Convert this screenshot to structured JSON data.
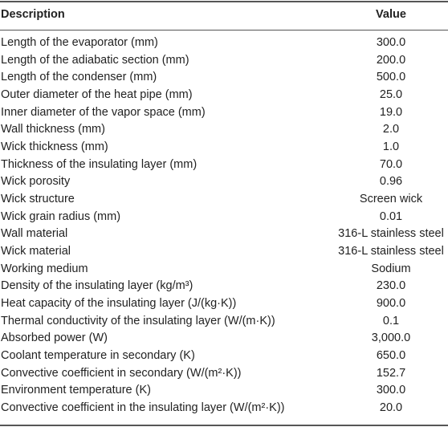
{
  "table": {
    "header": [
      "Description",
      "Value"
    ],
    "rows": [
      [
        "Length of the evaporator (mm)",
        "300.0"
      ],
      [
        "Length of the adiabatic section (mm)",
        "200.0"
      ],
      [
        "Length of the condenser (mm)",
        "500.0"
      ],
      [
        "Outer diameter of the heat pipe (mm)",
        "25.0"
      ],
      [
        "Inner diameter of the vapor space (mm)",
        "19.0"
      ],
      [
        "Wall thickness (mm)",
        "2.0"
      ],
      [
        "Wick thickness (mm)",
        "1.0"
      ],
      [
        "Thickness of the insulating layer (mm)",
        "70.0"
      ],
      [
        "Wick porosity",
        "0.96"
      ],
      [
        "Wick structure",
        "Screen wick"
      ],
      [
        "Wick grain radius (mm)",
        "0.01"
      ],
      [
        "Wall material",
        "316-L stainless steel"
      ],
      [
        "Wick material",
        "316-L stainless steel"
      ],
      [
        "Working medium",
        "Sodium"
      ],
      [
        "Density of the insulating layer (kg/m³)",
        "230.0"
      ],
      [
        "Heat capacity of the insulating layer (J/(kg·K))",
        "900.0"
      ],
      [
        "Thermal conductivity of the insulating layer (W/(m·K))",
        "0.1"
      ],
      [
        "Absorbed power (W)",
        "3,000.0"
      ],
      [
        "Coolant temperature in secondary (K)",
        "650.0"
      ],
      [
        "Convective coefficient in secondary (W/(m²·K))",
        "152.7"
      ],
      [
        "Environment temperature (K)",
        "300.0"
      ],
      [
        "Convective coefficient in the insulating layer (W/(m²·K))",
        "20.0"
      ]
    ]
  }
}
